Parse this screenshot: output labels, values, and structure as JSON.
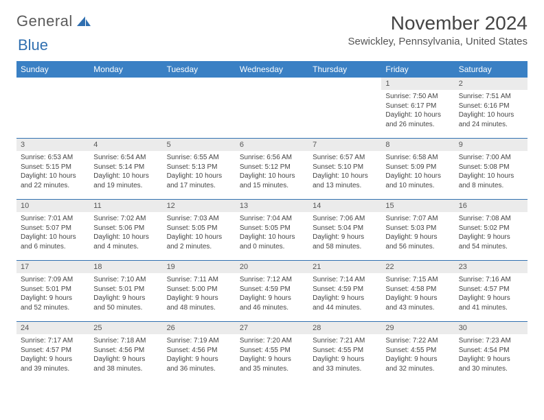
{
  "logo": {
    "word1": "General",
    "word2": "Blue"
  },
  "title": "November 2024",
  "subtitle": "Sewickley, Pennsylvania, United States",
  "colors": {
    "header_bg": "#3a80c4",
    "header_text": "#ffffff",
    "row_divider": "#2f6fb0",
    "daynum_bg": "#ebebeb",
    "body_text": "#444444",
    "logo_gray": "#5a5a5a",
    "logo_blue": "#2f6fb0"
  },
  "columns": [
    "Sunday",
    "Monday",
    "Tuesday",
    "Wednesday",
    "Thursday",
    "Friday",
    "Saturday"
  ],
  "weeks": [
    [
      {
        "n": "",
        "t": ""
      },
      {
        "n": "",
        "t": ""
      },
      {
        "n": "",
        "t": ""
      },
      {
        "n": "",
        "t": ""
      },
      {
        "n": "",
        "t": ""
      },
      {
        "n": "1",
        "t": "Sunrise: 7:50 AM\nSunset: 6:17 PM\nDaylight: 10 hours and 26 minutes."
      },
      {
        "n": "2",
        "t": "Sunrise: 7:51 AM\nSunset: 6:16 PM\nDaylight: 10 hours and 24 minutes."
      }
    ],
    [
      {
        "n": "3",
        "t": "Sunrise: 6:53 AM\nSunset: 5:15 PM\nDaylight: 10 hours and 22 minutes."
      },
      {
        "n": "4",
        "t": "Sunrise: 6:54 AM\nSunset: 5:14 PM\nDaylight: 10 hours and 19 minutes."
      },
      {
        "n": "5",
        "t": "Sunrise: 6:55 AM\nSunset: 5:13 PM\nDaylight: 10 hours and 17 minutes."
      },
      {
        "n": "6",
        "t": "Sunrise: 6:56 AM\nSunset: 5:12 PM\nDaylight: 10 hours and 15 minutes."
      },
      {
        "n": "7",
        "t": "Sunrise: 6:57 AM\nSunset: 5:10 PM\nDaylight: 10 hours and 13 minutes."
      },
      {
        "n": "8",
        "t": "Sunrise: 6:58 AM\nSunset: 5:09 PM\nDaylight: 10 hours and 10 minutes."
      },
      {
        "n": "9",
        "t": "Sunrise: 7:00 AM\nSunset: 5:08 PM\nDaylight: 10 hours and 8 minutes."
      }
    ],
    [
      {
        "n": "10",
        "t": "Sunrise: 7:01 AM\nSunset: 5:07 PM\nDaylight: 10 hours and 6 minutes."
      },
      {
        "n": "11",
        "t": "Sunrise: 7:02 AM\nSunset: 5:06 PM\nDaylight: 10 hours and 4 minutes."
      },
      {
        "n": "12",
        "t": "Sunrise: 7:03 AM\nSunset: 5:05 PM\nDaylight: 10 hours and 2 minutes."
      },
      {
        "n": "13",
        "t": "Sunrise: 7:04 AM\nSunset: 5:05 PM\nDaylight: 10 hours and 0 minutes."
      },
      {
        "n": "14",
        "t": "Sunrise: 7:06 AM\nSunset: 5:04 PM\nDaylight: 9 hours and 58 minutes."
      },
      {
        "n": "15",
        "t": "Sunrise: 7:07 AM\nSunset: 5:03 PM\nDaylight: 9 hours and 56 minutes."
      },
      {
        "n": "16",
        "t": "Sunrise: 7:08 AM\nSunset: 5:02 PM\nDaylight: 9 hours and 54 minutes."
      }
    ],
    [
      {
        "n": "17",
        "t": "Sunrise: 7:09 AM\nSunset: 5:01 PM\nDaylight: 9 hours and 52 minutes."
      },
      {
        "n": "18",
        "t": "Sunrise: 7:10 AM\nSunset: 5:01 PM\nDaylight: 9 hours and 50 minutes."
      },
      {
        "n": "19",
        "t": "Sunrise: 7:11 AM\nSunset: 5:00 PM\nDaylight: 9 hours and 48 minutes."
      },
      {
        "n": "20",
        "t": "Sunrise: 7:12 AM\nSunset: 4:59 PM\nDaylight: 9 hours and 46 minutes."
      },
      {
        "n": "21",
        "t": "Sunrise: 7:14 AM\nSunset: 4:59 PM\nDaylight: 9 hours and 44 minutes."
      },
      {
        "n": "22",
        "t": "Sunrise: 7:15 AM\nSunset: 4:58 PM\nDaylight: 9 hours and 43 minutes."
      },
      {
        "n": "23",
        "t": "Sunrise: 7:16 AM\nSunset: 4:57 PM\nDaylight: 9 hours and 41 minutes."
      }
    ],
    [
      {
        "n": "24",
        "t": "Sunrise: 7:17 AM\nSunset: 4:57 PM\nDaylight: 9 hours and 39 minutes."
      },
      {
        "n": "25",
        "t": "Sunrise: 7:18 AM\nSunset: 4:56 PM\nDaylight: 9 hours and 38 minutes."
      },
      {
        "n": "26",
        "t": "Sunrise: 7:19 AM\nSunset: 4:56 PM\nDaylight: 9 hours and 36 minutes."
      },
      {
        "n": "27",
        "t": "Sunrise: 7:20 AM\nSunset: 4:55 PM\nDaylight: 9 hours and 35 minutes."
      },
      {
        "n": "28",
        "t": "Sunrise: 7:21 AM\nSunset: 4:55 PM\nDaylight: 9 hours and 33 minutes."
      },
      {
        "n": "29",
        "t": "Sunrise: 7:22 AM\nSunset: 4:55 PM\nDaylight: 9 hours and 32 minutes."
      },
      {
        "n": "30",
        "t": "Sunrise: 7:23 AM\nSunset: 4:54 PM\nDaylight: 9 hours and 30 minutes."
      }
    ]
  ]
}
